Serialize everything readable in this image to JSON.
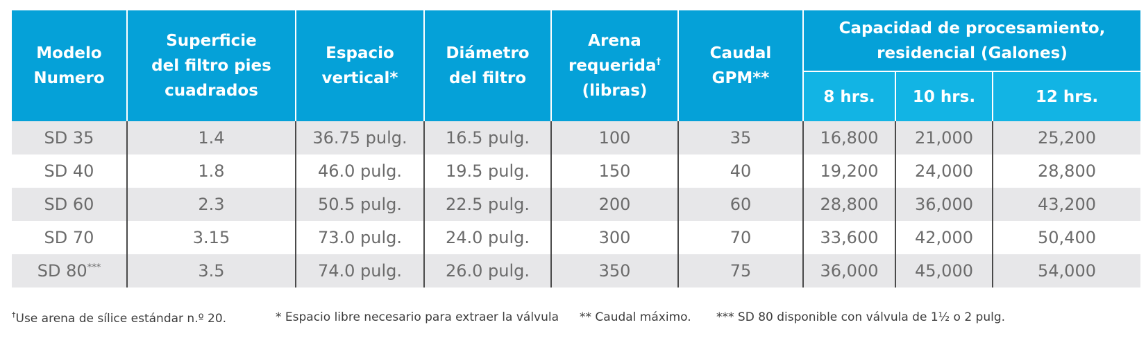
{
  "headers": {
    "modelo": [
      "Modelo",
      "Numero"
    ],
    "superficie": [
      "Superficie",
      "del filtro pies",
      "cuadrados"
    ],
    "espacio": [
      "Espacio",
      "vertical*"
    ],
    "diametro": [
      "Diámetro",
      "del filtro"
    ],
    "arena": [
      "Arena",
      "requerida",
      "(libras)"
    ],
    "arena_mark": "†",
    "caudal": [
      "Caudal",
      "GPM**"
    ],
    "capacidad": [
      "Capacidad de procesamiento,",
      "residencial (Galones)"
    ],
    "hours": [
      "8 hrs.",
      "10 hrs.",
      "12 hrs."
    ]
  },
  "rows": [
    {
      "model": "SD 35",
      "mark": "",
      "surface": "1.4",
      "vertical": "36.75 pulg.",
      "diameter": "16.5 pulg.",
      "sand": "100",
      "flow": "35",
      "h8": "16,800",
      "h10": "21,000",
      "h12": "25,200"
    },
    {
      "model": "SD 40",
      "mark": "",
      "surface": "1.8",
      "vertical": "46.0 pulg.",
      "diameter": "19.5 pulg.",
      "sand": "150",
      "flow": "40",
      "h8": "19,200",
      "h10": "24,000",
      "h12": "28,800"
    },
    {
      "model": "SD 60",
      "mark": "",
      "surface": "2.3",
      "vertical": "50.5 pulg.",
      "diameter": "22.5 pulg.",
      "sand": "200",
      "flow": "60",
      "h8": "28,800",
      "h10": "36,000",
      "h12": "43,200"
    },
    {
      "model": "SD 70",
      "mark": "",
      "surface": "3.15",
      "vertical": "73.0 pulg.",
      "diameter": "24.0 pulg.",
      "sand": "300",
      "flow": "70",
      "h8": "33,600",
      "h10": "42,000",
      "h12": "50,400"
    },
    {
      "model": "SD 80",
      "mark": "***",
      "surface": "3.5",
      "vertical": "74.0 pulg.",
      "diameter": "26.0 pulg.",
      "sand": "350",
      "flow": "75",
      "h8": "36,000",
      "h10": "45,000",
      "h12": "54,000"
    }
  ],
  "footnotes": {
    "sand_mark": "†",
    "sand": "Use arena de sílice estándar n.º 20.",
    "space": "* Espacio libre necesario para extraer la válvula",
    "flow": "** Caudal máximo.",
    "sd80": "*** SD 80 disponible con válvula de 1½ o 2 pulg."
  },
  "colors": {
    "header_blue": "#05a1d8",
    "subheader_blue": "#12b4e4",
    "row_shade": "#e7e7e9",
    "cell_text": "#6b6b6b"
  }
}
